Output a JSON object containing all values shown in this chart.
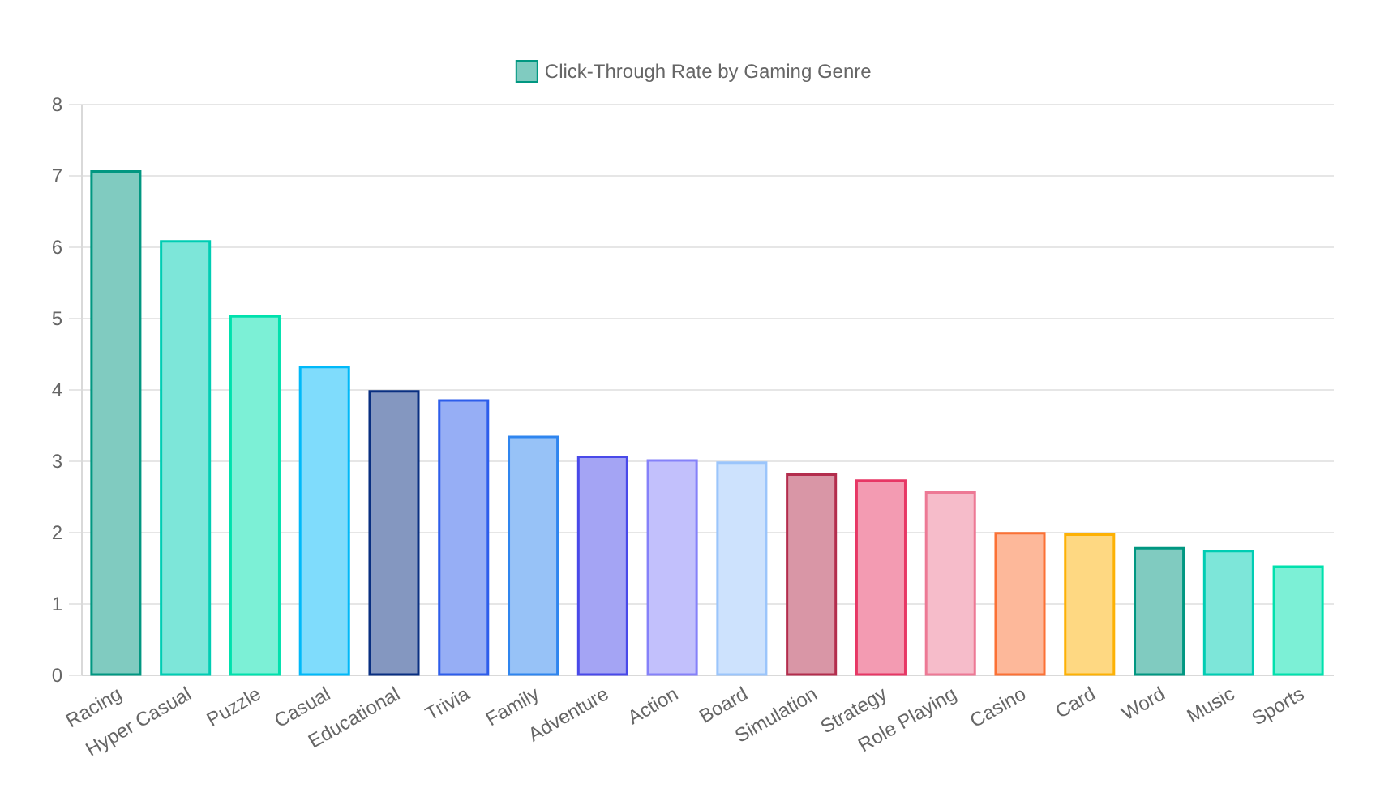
{
  "chart_data": {
    "type": "bar",
    "categories": [
      "Racing",
      "Hyper Casual",
      "Puzzle",
      "Casual",
      "Educational",
      "Trivia",
      "Family",
      "Adventure",
      "Action",
      "Board",
      "Simulation",
      "Strategy",
      "Role Playing",
      "Casino",
      "Card",
      "Word",
      "Music",
      "Sports"
    ],
    "series": [
      {
        "name": "Click-Through Rate by Gaming Genre",
        "values": [
          7.05,
          6.07,
          5.02,
          4.31,
          3.97,
          3.84,
          3.33,
          3.05,
          3.0,
          2.97,
          2.8,
          2.72,
          2.55,
          1.98,
          1.96,
          1.77,
          1.73,
          1.51
        ],
        "colors": [
          "#80cbc0",
          "#7de6d9",
          "#7cf0d6",
          "#7fdcfc",
          "#8497c0",
          "#96aef5",
          "#97c2f7",
          "#a4a4f4",
          "#c2c0fc",
          "#cde2fd",
          "#d996a6",
          "#f39bb2",
          "#f6bcca",
          "#fdb89a",
          "#fed882",
          "#80cbc0",
          "#7de6d9",
          "#7cf0d6"
        ]
      }
    ],
    "ylim": [
      0,
      8
    ],
    "yticks": [
      0,
      1,
      2,
      3,
      4,
      5,
      6,
      7,
      8
    ],
    "grid": "y",
    "legend": "top"
  }
}
